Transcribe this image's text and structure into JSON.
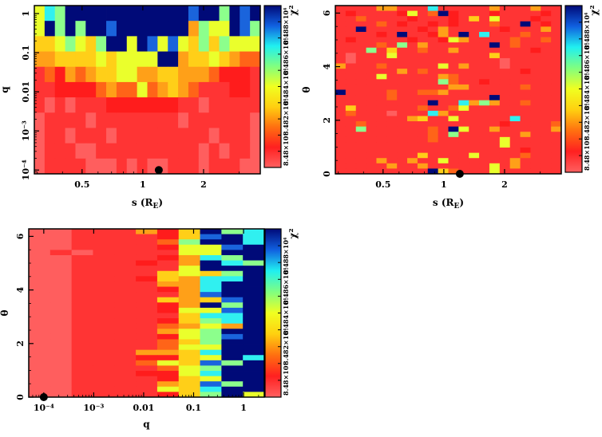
{
  "colormap": {
    "levels": {
      "0": "#ff5e5e",
      "1": "#ff3434",
      "2": "#ff1c1c",
      "3": "#ff6418",
      "4": "#ffa018",
      "5": "#ffcf18",
      "6": "#eaff2c",
      "7": "#8cff8c",
      "8": "#30f0f0",
      "9": "#1a64dc",
      "X": "#000a78"
    },
    "gradient": [
      "#ff6060",
      "#ff2020",
      "#ff7010",
      "#ffd010",
      "#f0ff20",
      "#80ff80",
      "#20f0f0",
      "#1060e0",
      "#000a78"
    ]
  },
  "chart_data": [
    {
      "type": "heatmap",
      "xlabel": "s (R",
      "xlabel_sub": "E",
      "xlabel_close": ")",
      "ylabel": "q",
      "xscale": "log",
      "yscale": "log",
      "xlim": [
        0.29,
        3.82
      ],
      "ylim": [
        8e-05,
        1.6
      ],
      "xticks": [
        {
          "v": 0.5,
          "label": "0.5"
        },
        {
          "v": 1,
          "label": "1"
        },
        {
          "v": 2,
          "label": "2"
        }
      ],
      "yticks": [
        {
          "v": 0.0001,
          "label": "10⁻⁴"
        },
        {
          "v": 0.001,
          "label": "10⁻³"
        },
        {
          "v": 0.01,
          "label": "0.01"
        },
        {
          "v": 0.1,
          "label": "0.1"
        },
        {
          "v": 1,
          "label": "1"
        }
      ],
      "marker": {
        "x": 1.2,
        "y": 0.0001
      },
      "colorbar": {
        "label": "χ²",
        "ticks": [
          "8.48×10⁴",
          "8.482×10⁴",
          "8.484×10⁴",
          "8.486×10⁴",
          "8.488×10⁴"
        ]
      },
      "rows": [
        "687XXXXXXXXXXXX9XX7X9X",
        "6X7X7XX9XXXXXXX4766X97",
        "5567657XX6X96965757666",
        "445555656666XX45565433",
        "1324345566445544432221",
        "1122223433634543111221",
        "1010111222222211011111",
        "0111101111111101111110",
        "0110111011111111101110",
        "0111001111111111010110",
        "0111100010100111011100"
      ]
    },
    {
      "type": "heatmap",
      "xlabel": "s (R",
      "xlabel_sub": "E",
      "xlabel_close": ")",
      "ylabel": "θ",
      "xscale": "log",
      "yscale": "linear",
      "xlim": [
        0.29,
        3.82
      ],
      "ylim": [
        0,
        6.28
      ],
      "xticks": [
        {
          "v": 0.5,
          "label": "0.5"
        },
        {
          "v": 1,
          "label": "1"
        },
        {
          "v": 2,
          "label": "2"
        }
      ],
      "yticks": [
        {
          "v": 0,
          "label": "0"
        },
        {
          "v": 2,
          "label": "2"
        },
        {
          "v": 4,
          "label": "4"
        },
        {
          "v": 6,
          "label": "6"
        }
      ],
      "marker": {
        "x": 1.2,
        "y": 0
      },
      "colorbar": {
        "label": "χ²",
        "ticks": [
          "8.48×10⁴",
          "8.482×10⁴",
          "8.484×10⁴",
          "8.486×10⁴",
          "8.488×10⁴"
        ]
      },
      "rows": [
        "1111441118111114111411",
        "1211112613X21112111121",
        "1131111211121516111211",
        "111131211212111311X121",
        "11X1111121411111211141",
        "111121X11241X181113111",
        "1211111211264111131131",
        "111131714111111X131111",
        "1117151131141111111211",
        "1011161111111115111111",
        "1011111111111111011111",
        "4111311111614111011111",
        "1111114131111111112111",
        "1111611111431111111111",
        "1111111111731121111111",
        "1111111111144111113111",
        "X111131133411111111111",
        "111113111111111X111111",
        "111111111X118474113111",
        "1511111131136111111111",
        "1311101118411111111111",
        "1111111451161111181111",
        "1131111111111111211113",
        "11711111131X6114111114",
        "1111111113171111114111",
        "1111111113111111611111",
        "1111111111111111611111",
        "1111111111111111112111",
        "1111111151111611113111",
        "1111411411611111141111",
        "1111141141111116141111",
        "111111111X531116111111"
      ]
    },
    {
      "type": "heatmap",
      "xlabel": "q",
      "ylabel": "θ",
      "xscale": "log",
      "yscale": "linear",
      "xlim": [
        5e-05,
        2.6
      ],
      "ylim": [
        0,
        6.28
      ],
      "xticks": [
        {
          "v": 0.0001,
          "label": "10⁻⁴"
        },
        {
          "v": 0.001,
          "label": "10⁻³"
        },
        {
          "v": 0.01,
          "label": "0.01"
        },
        {
          "v": 0.1,
          "label": "0.1"
        },
        {
          "v": 1,
          "label": "1"
        }
      ],
      "yticks": [
        {
          "v": 0,
          "label": "0"
        },
        {
          "v": 2,
          "label": "2"
        },
        {
          "v": 4,
          "label": "4"
        },
        {
          "v": 6,
          "label": "6"
        }
      ],
      "marker": {
        "x": 0.0001,
        "y": 0
      },
      "colorbar": {
        "label": "χ²",
        "ticks": [
          "8.48×10⁴",
          "8.482×10⁴",
          "8.484×10⁴",
          "8.486×10⁴",
          "8.488×10⁴"
        ]
      },
      "rows": [
        "00111425X78",
        "001111259X8",
        "00111137XX8",
        "0011112669X",
        "010111166XX",
        "0011112487X",
        "00111214X87",
        "00111116XXX",
        "0011115657X",
        "0011125488X",
        "001111448XX",
        "001111248XX",
        "001111149XX",
        "0011115459X",
        "00111124X7X",
        "0011112669X",
        "0011111588X",
        "0011112578X",
        "0011113464X",
        "001111467XX",
        "0011112679X",
        "001111357XX",
        "001111366XX",
        "001114458XX",
        "001112256X8",
        "0011136597X",
        "001111367XX",
        "001112268XX",
        "001111256XX",
        "0011114597X",
        "001111658XX",
        "001111257X6"
      ]
    }
  ]
}
